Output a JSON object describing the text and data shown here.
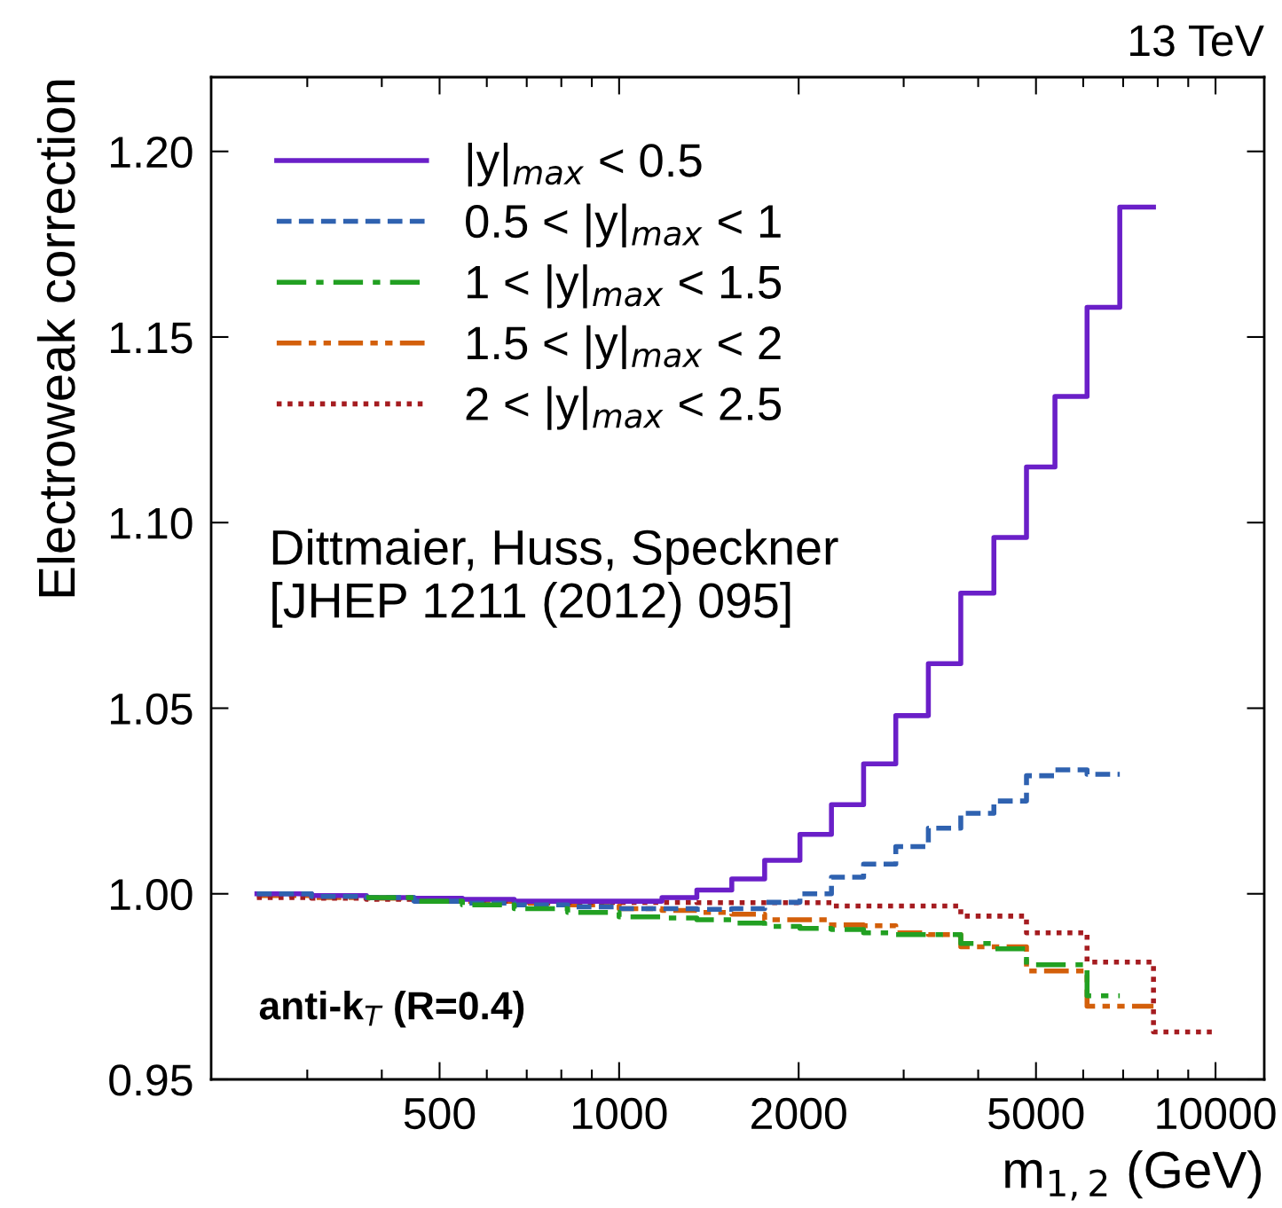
{
  "chart_data": {
    "type": "step",
    "xlabel": "m$_{1,2}$ (GeV)",
    "ylabel": "Electroweak correction",
    "x": [
      247,
      305,
      377,
      453,
      546,
      667,
      820,
      1000,
      1180,
      1350,
      1545,
      1754,
      2010,
      2270,
      2570,
      2910,
      3300,
      3740,
      4250,
      4820,
      5380,
      6090,
      6910,
      7870,
      10000
    ],
    "series": [
      {
        "name": "|y|$_{max}$ < 0.5",
        "color": "#6a1fc8",
        "line_style": "solid",
        "x": [
          247,
          305,
          377,
          453,
          546,
          667,
          820,
          1000,
          1180,
          1350,
          1545,
          1754,
          2010,
          2270,
          2570,
          2910,
          3300,
          3740,
          4250,
          4820,
          5380,
          6090,
          6910,
          7870
        ],
        "values": [
          1.0,
          0.9995,
          0.999,
          0.9988,
          0.9985,
          0.998,
          0.998,
          0.998,
          0.999,
          1.001,
          1.004,
          1.009,
          1.016,
          1.024,
          1.035,
          1.048,
          1.062,
          1.081,
          1.096,
          1.115,
          1.134,
          1.158,
          1.185,
          1.185
        ]
      },
      {
        "name": "0.5 < |y|$_{max}$ < 1",
        "color": "#2f62b0",
        "line_style": "dashed",
        "x": [
          247,
          305,
          377,
          453,
          546,
          667,
          820,
          1000,
          1180,
          1350,
          1545,
          1754,
          2010,
          2270,
          2570,
          2910,
          3300,
          3740,
          4250,
          4820,
          5380,
          6090,
          6910
        ],
        "values": [
          1.0,
          0.9993,
          0.999,
          0.998,
          0.9975,
          0.997,
          0.9965,
          0.996,
          0.996,
          0.9958,
          0.996,
          0.9977,
          1.0,
          1.0045,
          1.008,
          1.0127,
          1.0177,
          1.0217,
          1.025,
          1.0318,
          1.0334,
          1.0322,
          1.0322
        ]
      },
      {
        "name": "1 < |y|$_{max}$ < 1.5",
        "color": "#22a022",
        "line_style": "dashdot",
        "x": [
          377,
          453,
          546,
          667,
          820,
          1000,
          1180,
          1350,
          1545,
          1754,
          2010,
          2270,
          2570,
          2910,
          3300,
          3740,
          4250,
          4820,
          5380,
          6090,
          6910
        ],
        "values": [
          0.999,
          0.998,
          0.997,
          0.996,
          0.995,
          0.9938,
          0.9935,
          0.993,
          0.9921,
          0.9912,
          0.9907,
          0.9904,
          0.9895,
          0.989,
          0.989,
          0.9866,
          0.9852,
          0.9809,
          0.9809,
          0.9725,
          0.9725
        ]
      },
      {
        "name": "1.5 < |y|$_{max}$ < 2",
        "color": "#d35f0a",
        "line_style": "dashdotdot",
        "x": [
          247,
          305,
          377,
          453,
          546,
          667,
          820,
          1000,
          1180,
          1350,
          1545,
          1754,
          2010,
          2270,
          2570,
          2910,
          3300,
          3740,
          4250,
          4820,
          5380,
          6090,
          6910,
          7870
        ],
        "values": [
          0.9995,
          0.999,
          0.9988,
          0.9985,
          0.998,
          0.9975,
          0.997,
          0.996,
          0.9955,
          0.995,
          0.9945,
          0.993,
          0.993,
          0.9916,
          0.9914,
          0.9895,
          0.989,
          0.9857,
          0.9857,
          0.9792,
          0.9792,
          0.9697,
          0.9697,
          0.9697
        ]
      },
      {
        "name": "2 < |y|$_{max}$ < 2.5",
        "color": "#a51c20",
        "line_style": "dotted",
        "values": [
          0.999,
          0.9988,
          0.9985,
          0.998,
          0.998,
          0.9978,
          0.9977,
          0.9977,
          0.9977,
          0.9976,
          0.9976,
          0.9976,
          0.9976,
          0.9967,
          0.9967,
          0.9967,
          0.9967,
          0.994,
          0.994,
          0.9895,
          0.9895,
          0.9816,
          0.9816,
          0.9628,
          0.9628
        ]
      }
    ],
    "xlim": [
      207,
      12070
    ],
    "ylim": [
      0.95,
      1.22
    ],
    "log": "x",
    "xticks": [
      {
        "value": 300,
        "label": null
      },
      {
        "value": 400,
        "label": null
      },
      500,
      {
        "value": 600,
        "label": null
      },
      {
        "value": 700,
        "label": null
      },
      {
        "value": 800,
        "label": null
      },
      {
        "value": 900,
        "label": null
      },
      1000,
      2000,
      {
        "value": 3000,
        "label": null
      },
      {
        "value": 4000,
        "label": null
      },
      5000,
      {
        "value": 6000,
        "label": null
      },
      {
        "value": 7000,
        "label": null
      },
      {
        "value": 8000,
        "label": null
      },
      {
        "value": 9000,
        "label": null
      },
      10000
    ],
    "yticks": [
      {
        "value": 0.95,
        "label": "0.95"
      },
      {
        "value": 1.0,
        "label": "1.00"
      },
      {
        "value": 1.05,
        "label": "1.05"
      },
      {
        "value": 1.1,
        "label": "1.10"
      },
      {
        "value": 1.15,
        "label": "1.15"
      },
      {
        "value": 1.2,
        "label": "1.20"
      }
    ],
    "grid": false,
    "legend": "top left",
    "annotations": [
      "13 TeV",
      "Dittmaier, Huss, Speckner\n[JHEP 1211 (2012) 095]",
      "anti-k$_{T}$ (R=0.4)"
    ]
  }
}
